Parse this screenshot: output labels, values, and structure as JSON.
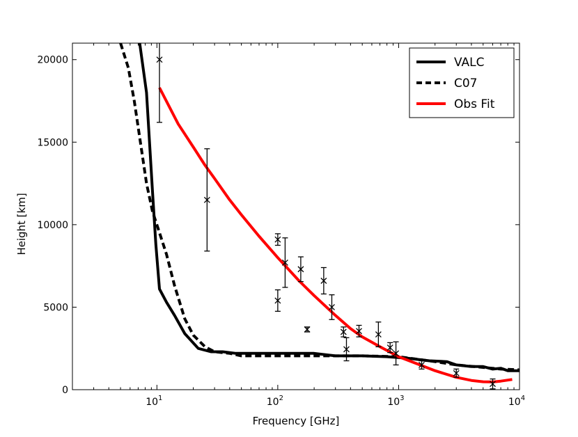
{
  "chart_data": {
    "type": "line",
    "title": "",
    "xlabel": "Frequency [GHz]",
    "ylabel": "Height [km]",
    "xscale": "log",
    "xlim": [
      2,
      10000
    ],
    "ylim": [
      0,
      21000
    ],
    "x_ticks": [
      {
        "value": 10,
        "base": "10",
        "exp": "1"
      },
      {
        "value": 100,
        "base": "10",
        "exp": "2"
      },
      {
        "value": 1000,
        "base": "10",
        "exp": "3"
      },
      {
        "value": 10000,
        "base": "10",
        "exp": "4"
      }
    ],
    "y_ticks": [
      {
        "value": 0,
        "label": "0"
      },
      {
        "value": 5000,
        "label": "5000"
      },
      {
        "value": 10000,
        "label": "10000"
      },
      {
        "value": 15000,
        "label": "15000"
      },
      {
        "value": 20000,
        "label": "20000"
      }
    ],
    "legend": {
      "position": "top-right",
      "entries": [
        {
          "label": "VALC",
          "color": "#000000",
          "style": "solid"
        },
        {
          "label": "C07",
          "color": "#000000",
          "style": "dashed"
        },
        {
          "label": "Obs Fit",
          "color": "#ff0000",
          "style": "solid"
        }
      ]
    },
    "series": [
      {
        "name": "VALC",
        "color": "#000000",
        "style": "solid",
        "x": [
          7.2,
          8.2,
          9.2,
          9.8,
          10.5,
          12,
          14,
          17,
          22,
          28,
          35,
          45,
          60,
          100,
          200,
          300,
          500,
          800,
          1200,
          1800,
          2500,
          3000,
          4000,
          5000,
          6000,
          7000,
          8000,
          10000
        ],
        "y": [
          21000,
          18000,
          12000,
          8800,
          6100,
          5300,
          4500,
          3400,
          2500,
          2300,
          2300,
          2200,
          2200,
          2200,
          2200,
          2050,
          2050,
          2000,
          1900,
          1750,
          1700,
          1500,
          1400,
          1400,
          1250,
          1300,
          1150,
          1150
        ]
      },
      {
        "name": "C07",
        "color": "#000000",
        "style": "dashed",
        "x": [
          5.0,
          5.8,
          6.5,
          7.3,
          8.2,
          9.2,
          10.2,
          12,
          14,
          17,
          20,
          25,
          30,
          40,
          50,
          100,
          200,
          300,
          500,
          1000,
          2000,
          3000,
          5000,
          7000,
          10000
        ],
        "y": [
          21000,
          19500,
          17500,
          15000,
          12500,
          10800,
          9800,
          8200,
          6300,
          4300,
          3300,
          2600,
          2300,
          2200,
          2050,
          2050,
          2050,
          2050,
          2050,
          2000,
          1700,
          1500,
          1350,
          1250,
          1200
        ]
      },
      {
        "name": "Obs Fit",
        "color": "#ff0000",
        "style": "solid",
        "x": [
          10.5,
          15,
          20,
          25,
          30,
          40,
          50,
          70,
          100,
          150,
          200,
          300,
          400,
          500,
          700,
          1000,
          1500,
          2000,
          3000,
          4000,
          5000,
          6000,
          7000,
          8700
        ],
        "y": [
          18300,
          16100,
          14700,
          13600,
          12800,
          11500,
          10600,
          9300,
          8000,
          6600,
          5700,
          4500,
          3700,
          3200,
          2600,
          2000,
          1500,
          1150,
          750,
          560,
          480,
          470,
          520,
          620
        ]
      }
    ],
    "observations": {
      "name": "Observations",
      "marker": "x",
      "color": "#000000",
      "points": [
        {
          "x": 10.5,
          "y": 20000,
          "err": 3800
        },
        {
          "x": 26,
          "y": 11500,
          "err": 3100
        },
        {
          "x": 100,
          "y": 9100,
          "err": 350
        },
        {
          "x": 100,
          "y": 5400,
          "err": 650
        },
        {
          "x": 115,
          "y": 7700,
          "err": 1500
        },
        {
          "x": 155,
          "y": 7300,
          "err": 750
        },
        {
          "x": 175,
          "y": 3650,
          "err": 150
        },
        {
          "x": 240,
          "y": 6600,
          "err": 800
        },
        {
          "x": 280,
          "y": 5000,
          "err": 750
        },
        {
          "x": 350,
          "y": 3500,
          "err": 300
        },
        {
          "x": 370,
          "y": 2450,
          "err": 700
        },
        {
          "x": 470,
          "y": 3550,
          "err": 350
        },
        {
          "x": 680,
          "y": 3350,
          "err": 750
        },
        {
          "x": 850,
          "y": 2550,
          "err": 300
        },
        {
          "x": 950,
          "y": 2200,
          "err": 700
        },
        {
          "x": 1550,
          "y": 1500,
          "err": 250
        },
        {
          "x": 3000,
          "y": 1000,
          "err": 250
        },
        {
          "x": 6000,
          "y": 350,
          "err": 300
        }
      ]
    }
  }
}
